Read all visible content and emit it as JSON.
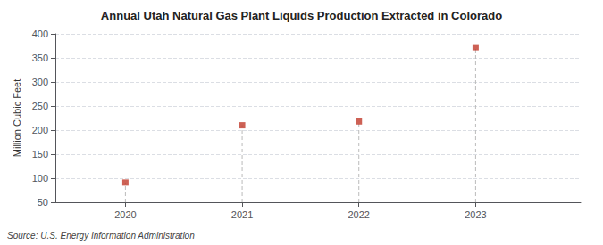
{
  "chart_data": {
    "type": "lollipop",
    "title": "Annual Utah Natural Gas Plant Liquids Production Extracted in Colorado",
    "ylabel": "Million Cubic Feet",
    "annotation": "Source: U.S. Energy Information Administration",
    "x": [
      2020,
      2021,
      2022,
      2023
    ],
    "values": [
      91,
      210,
      218,
      372
    ],
    "color": "#c0392b",
    "marker": "square",
    "line_style": "dashed",
    "xlim": [
      2019.4,
      2023.9
    ],
    "xticks": [
      2020,
      2021,
      2022,
      2023
    ],
    "ylim": [
      50,
      400
    ],
    "yticks": [
      50,
      100,
      150,
      200,
      250,
      300,
      350,
      400
    ],
    "grid": true
  }
}
